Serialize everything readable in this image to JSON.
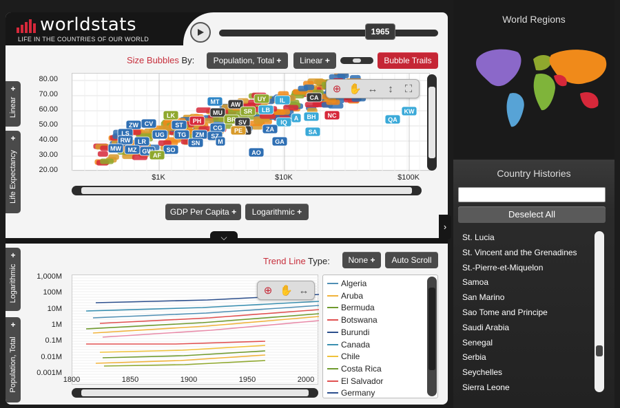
{
  "app": {
    "logo_text": "worldstats",
    "tagline": "LIFE IN THE COUNTRIES OF OUR WORLD",
    "year": "1965"
  },
  "bubble_toolbar": {
    "size_label_accent": "Size Bubbles",
    "size_label_rest": " By:",
    "size_measure": "Population, Total",
    "scale": "Linear",
    "trails": "Bubble Trails"
  },
  "bubble_chart": {
    "y_ticks": [
      "80.00",
      "70.00",
      "60.00",
      "50.00",
      "40.00",
      "30.00",
      "20.00"
    ],
    "x_ticks": [
      "$1K",
      "$10K",
      "$100K"
    ],
    "y_axis_tab": "Life Expectancy",
    "y_scale_tab": "Linear",
    "x_measure": "GDP Per Capita",
    "x_scale": "Logarithmic",
    "bubbles": [
      {
        "code": "MT",
        "color": "#2f86c7"
      },
      {
        "code": "AW",
        "color": "#3a3a3a"
      },
      {
        "code": "UY",
        "color": "#8fa82e"
      },
      {
        "code": "IL",
        "color": "#3aa9d8"
      },
      {
        "code": "CA",
        "color": "#3a3a3a"
      },
      {
        "code": "LK",
        "color": "#8fa82e"
      },
      {
        "code": "MU",
        "color": "#3a3a3a"
      },
      {
        "code": "SR",
        "color": "#8fa82e"
      },
      {
        "code": "LB",
        "color": "#3aa9d8"
      },
      {
        "code": "PH",
        "color": "#d6283a"
      },
      {
        "code": "CV",
        "color": "#2f6fb3"
      },
      {
        "code": "ZW",
        "color": "#2f6fb3"
      },
      {
        "code": "ST",
        "color": "#2f6fb3"
      },
      {
        "code": "BR",
        "color": "#8fa82e"
      },
      {
        "code": "SV",
        "color": "#3a3a3a"
      },
      {
        "code": "IQ",
        "color": "#3aa9d8"
      },
      {
        "code": "A",
        "color": "#3aa9d8"
      },
      {
        "code": "BH",
        "color": "#3aa9d8"
      },
      {
        "code": "NC",
        "color": "#d6283a"
      },
      {
        "code": "KW",
        "color": "#3aa9d8"
      },
      {
        "code": "QA",
        "color": "#3aa9d8"
      },
      {
        "code": "LS",
        "color": "#2f6fb3"
      },
      {
        "code": "CG",
        "color": "#2f6fb3"
      },
      {
        "code": "TG",
        "color": "#2f6fb3"
      },
      {
        "code": "ZM",
        "color": "#2f6fb3"
      },
      {
        "code": "SZ",
        "color": "#2f6fb3"
      },
      {
        "code": "NA",
        "color": "#3a3a3a"
      },
      {
        "code": "ZA",
        "color": "#2f6fb3"
      },
      {
        "code": "SA",
        "color": "#3aa9d8"
      },
      {
        "code": "RW",
        "color": "#2f6fb3"
      },
      {
        "code": "UG",
        "color": "#2f6fb3"
      },
      {
        "code": "LR",
        "color": "#2f6fb3"
      },
      {
        "code": "SN",
        "color": "#2f6fb3"
      },
      {
        "code": "MW",
        "color": "#2f6fb3"
      },
      {
        "code": "MZ",
        "color": "#2f6fb3"
      },
      {
        "code": "GW",
        "color": "#2f6fb3"
      },
      {
        "code": "SO",
        "color": "#2f6fb3"
      },
      {
        "code": "GA",
        "color": "#2f6fb3"
      },
      {
        "code": "AO",
        "color": "#2f6fb3"
      },
      {
        "code": "AF",
        "color": "#8fa82e"
      },
      {
        "code": "PE",
        "color": "#d89a2a"
      },
      {
        "code": "M",
        "color": "#2f6fb3"
      }
    ]
  },
  "trend_toolbar": {
    "label_accent": "Trend Line",
    "label_rest": " Type:",
    "type": "None",
    "auto_scroll": "Auto Scroll"
  },
  "chart_data": {
    "type": "line",
    "x": [
      1800,
      1850,
      1900,
      1950,
      2000
    ],
    "x_ticks": [
      "1800",
      "1850",
      "1900",
      "1950",
      "2000"
    ],
    "y_ticks": [
      "1,000M",
      "100M",
      "10M",
      "1M",
      "0.1M",
      "0.01M",
      "0.001M"
    ],
    "y_scale": "log",
    "y_axis_tab": "Population, Total",
    "y_scale_tab": "Logarithmic",
    "series": [
      {
        "name": "Algeria",
        "color": "#4f8fb4"
      },
      {
        "name": "Aruba",
        "color": "#f0b23a"
      },
      {
        "name": "Bermuda",
        "color": "#6f9a2e"
      },
      {
        "name": "Botswana",
        "color": "#e05050"
      },
      {
        "name": "Burundi",
        "color": "#2b4e8c"
      },
      {
        "name": "Canada",
        "color": "#3a8fb0"
      },
      {
        "name": "Chile",
        "color": "#f0c23a"
      },
      {
        "name": "Costa Rica",
        "color": "#6f9a2e"
      },
      {
        "name": "El Salvador",
        "color": "#e05050"
      },
      {
        "name": "Germany",
        "color": "#2b4e8c"
      }
    ]
  },
  "regions": {
    "title": "World Regions",
    "colors": {
      "north_america": "#8b68c9",
      "south_america": "#57a3d6",
      "europe": "#8fa82e",
      "africa": "#7fb43a",
      "asia": "#f08a1a",
      "oceania": "#d6283a"
    }
  },
  "histories": {
    "title": "Country Histories",
    "search_value": "",
    "deselect": "Deselect All",
    "countries": [
      "St. Lucia",
      "St. Vincent and the Grenadines",
      "St.-Pierre-et-Miquelon",
      "Samoa",
      "San Marino",
      "Sao Tome and Principe",
      "Saudi Arabia",
      "Senegal",
      "Serbia",
      "Seychelles",
      "Sierra Leone"
    ]
  }
}
